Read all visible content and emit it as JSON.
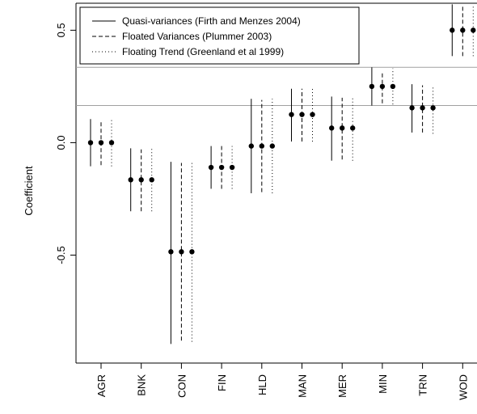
{
  "chart_data": {
    "type": "errorbar",
    "title": "",
    "xlabel": "",
    "ylabel": "Coefficient",
    "ylim": [
      -0.98,
      0.62
    ],
    "yticks": [
      -0.5,
      0.0,
      0.5
    ],
    "ytick_labels": [
      "-0.5",
      "0.0",
      "0.5"
    ],
    "categories": [
      "AGR",
      "BNK",
      "CON",
      "FIN",
      "HLD",
      "MAN",
      "MER",
      "MIN",
      "TRN",
      "WOD"
    ],
    "estimates": [
      0.0,
      -0.165,
      -0.485,
      -0.11,
      -0.015,
      0.125,
      0.065,
      0.25,
      0.155,
      0.5
    ],
    "series": [
      {
        "name": "Quasi-variances (Firth and Menzes 2004)",
        "linestyle": "solid",
        "lower": [
          -0.105,
          -0.305,
          -0.895,
          -0.205,
          -0.225,
          0.005,
          -0.08,
          0.165,
          0.045,
          0.385
        ],
        "upper": [
          0.105,
          -0.025,
          -0.085,
          -0.015,
          0.195,
          0.24,
          0.205,
          0.335,
          0.26,
          0.615
        ]
      },
      {
        "name": "Floated Variances (Plummer 2003)",
        "linestyle": "dashed",
        "lower": [
          -0.1,
          -0.305,
          -0.88,
          -0.205,
          -0.22,
          0.005,
          -0.075,
          0.175,
          0.045,
          0.385
        ],
        "upper": [
          0.1,
          -0.03,
          -0.09,
          -0.015,
          0.19,
          0.24,
          0.2,
          0.315,
          0.255,
          0.615
        ]
      },
      {
        "name": "Floating Trend (Greenland et al 1999)",
        "linestyle": "dotted",
        "lower": [
          -0.105,
          -0.305,
          -0.885,
          -0.205,
          -0.225,
          0.005,
          -0.08,
          0.17,
          0.04,
          0.385
        ],
        "upper": [
          0.105,
          -0.025,
          -0.085,
          -0.015,
          0.195,
          0.24,
          0.205,
          0.33,
          0.255,
          0.615
        ]
      }
    ],
    "reference_lines": [
      0.335,
      0.165
    ],
    "legend": {
      "placement": "top-left"
    },
    "grid": false,
    "colors": {
      "ink": "#000000",
      "reference": "#a0a0a0",
      "background": "#ffffff"
    }
  }
}
